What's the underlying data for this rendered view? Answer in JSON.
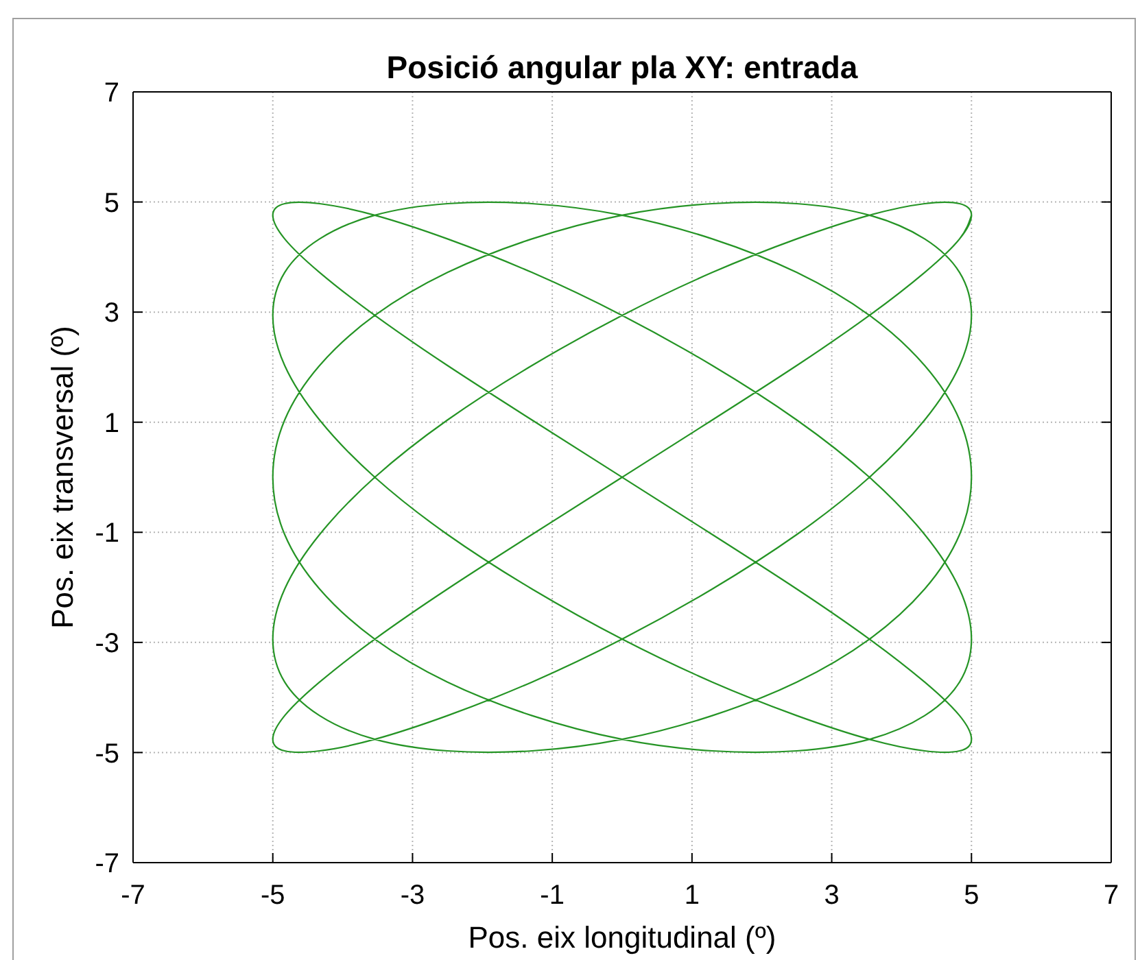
{
  "chart_data": {
    "type": "line",
    "title": "Posició angular pla XY: entrada",
    "xlabel": "Pos. eix longitudinal (º)",
    "ylabel": "Pos. eix transversal (º)",
    "xlim": [
      -7,
      7
    ],
    "ylim": [
      -7,
      7
    ],
    "xticks": [
      -7,
      -5,
      -3,
      -1,
      1,
      3,
      5,
      7
    ],
    "yticks": [
      -7,
      -5,
      -3,
      -1,
      1,
      3,
      5,
      7
    ],
    "grid": true,
    "line_style": "solid",
    "series": [
      {
        "color": "#259425",
        "x": [
          0,
          1.29,
          2.5,
          3.54,
          4.33,
          4.83,
          5,
          4.83,
          4.33,
          3.54,
          2.5,
          1.29,
          0,
          -1.29,
          -2.5,
          -3.54,
          -4.33,
          -4.83,
          -5,
          -4.83,
          -4.33,
          -3.54,
          -2.5,
          -1.29,
          0,
          1.29,
          2.5,
          3.54,
          4.33,
          4.83,
          5,
          4.83,
          4.33,
          3.54,
          2.5,
          1.29,
          0,
          -1.29,
          -2.5,
          -3.54,
          -4.33,
          -4.83,
          -5,
          -4.83,
          -4.33,
          -3.54,
          -2.5,
          -1.29,
          0,
          1.29,
          2.5,
          3.54,
          4.33,
          4.83,
          5,
          4.83,
          4.33,
          3.54,
          2.5,
          1.29,
          0,
          -1.29,
          -2.5,
          -3.54,
          -4.33,
          -4.83,
          -5,
          -4.83,
          -4.33,
          -3.54,
          -2.5,
          -1.29,
          0,
          1.29,
          2.5,
          3.54,
          4.33,
          4.83,
          5,
          4.83,
          4.33,
          3.54,
          2.5,
          1.29,
          0,
          -1.29,
          -2.5,
          -3.54,
          -4.33,
          -4.83,
          -5,
          -4.83,
          -4.33,
          -3.54,
          -2.5,
          -1.29,
          0,
          1.29,
          2.5,
          3.54,
          4.33,
          4.83,
          5,
          4.83,
          4.33,
          3.54,
          2.5,
          1.29,
          0,
          -1.29,
          -2.5,
          -3.54,
          -4.33,
          -4.83,
          -5,
          -4.83,
          -4.33,
          -3.54,
          -2.5,
          -1.29,
          0,
          1.29,
          2.5,
          3.54,
          4.33,
          4.83,
          5
        ],
        "values": [
          0,
          1.04,
          2.03,
          2.94,
          3.72,
          4.33,
          4.76,
          4.97,
          4.97,
          4.76,
          4.33,
          3.72,
          2.94,
          2.03,
          1.04,
          0,
          -1.04,
          -2.03,
          -2.94,
          -3.72,
          -4.33,
          -4.76,
          -4.97,
          -4.97,
          -4.76,
          -4.33,
          -3.72,
          -2.94,
          -2.03,
          -1.04,
          0,
          1.04,
          2.03,
          2.94,
          3.72,
          4.33,
          4.76,
          4.97,
          4.97,
          4.76,
          4.33,
          3.72,
          2.94,
          2.03,
          1.04,
          0,
          -1.04,
          -2.03,
          -2.94,
          -3.72,
          -4.33,
          -4.76,
          -4.97,
          -4.97,
          -4.76,
          -4.33,
          -3.72,
          -2.94,
          -2.03,
          -1.04,
          0,
          1.04,
          2.03,
          2.94,
          3.72,
          4.33,
          4.76,
          4.97,
          4.97,
          4.76,
          4.33,
          3.72,
          2.94,
          2.03,
          1.04,
          0,
          -1.04,
          -2.03,
          -2.94,
          -3.72,
          -4.33,
          -4.76,
          -4.97,
          -4.97,
          -4.76,
          -4.33,
          -3.72,
          -2.94,
          -2.03,
          -1.04,
          0,
          1.04,
          2.03,
          2.94,
          3.72,
          4.33,
          4.76,
          4.97,
          4.97,
          4.76,
          4.33,
          3.72,
          2.94,
          2.03,
          1.04,
          0,
          -1.04,
          -2.03,
          -2.94,
          -3.72,
          -4.33,
          -4.76,
          -4.97,
          -4.97,
          -4.76,
          -4.33,
          -3.72,
          -2.94,
          -2.03,
          -1.04,
          0,
          1.04,
          2.03,
          2.94,
          3.72,
          4.33,
          4.76
        ]
      }
    ]
  }
}
